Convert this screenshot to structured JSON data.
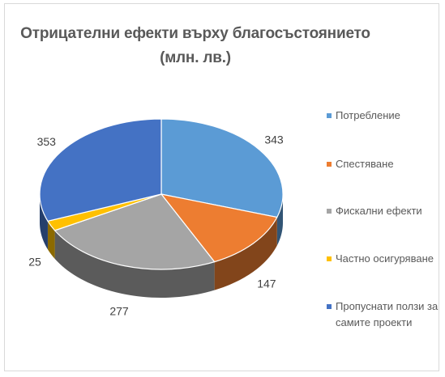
{
  "chart_data": {
    "type": "pie",
    "title_line1": "Отрицателни ефекти върху благосъстоянието",
    "title_line2": "(млн. лв.)",
    "categories": [
      "Потребление",
      "Спестяване",
      "Фискални ефекти",
      "Частно осигуряване",
      "Пропуснати ползи за самите проекти"
    ],
    "values": [
      343,
      147,
      277,
      25,
      353
    ],
    "data_labels": [
      "343",
      "147",
      "277",
      "25",
      "353"
    ],
    "colors": [
      "#5b9bd5",
      "#ed7d31",
      "#a5a5a5",
      "#ffc000",
      "#4472c4"
    ],
    "legend_position": "right",
    "style": "3d"
  }
}
